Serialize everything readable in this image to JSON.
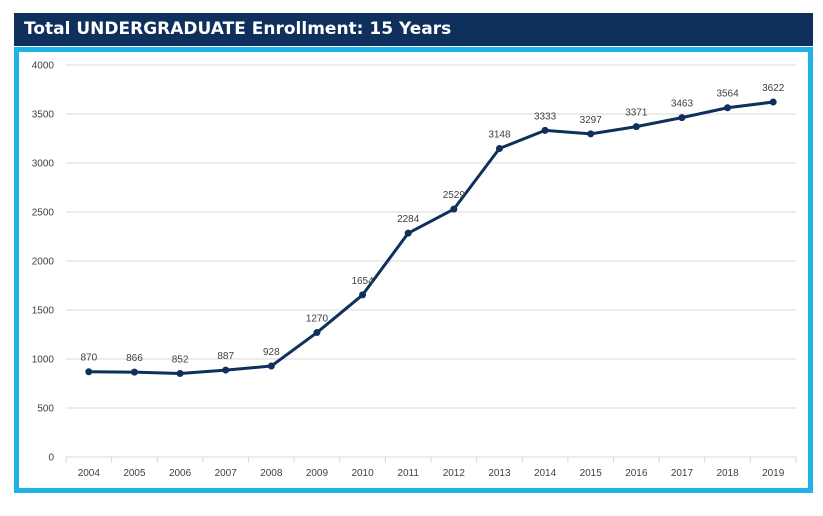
{
  "header": {
    "title": "Total UNDERGRADUATE Enrollment: 15 Years"
  },
  "colors": {
    "header_bg": "#0f2f5c",
    "frame_border": "#1fb3e5",
    "series_line": "#0f2f5c",
    "grid": "#d9d9d9"
  },
  "chart_data": {
    "type": "line",
    "title": "Total UNDERGRADUATE Enrollment: 15 Years",
    "xlabel": "",
    "ylabel": "",
    "categories": [
      "2004",
      "2005",
      "2006",
      "2007",
      "2008",
      "2009",
      "2010",
      "2011",
      "2012",
      "2013",
      "2014",
      "2015",
      "2016",
      "2017",
      "2018",
      "2019"
    ],
    "series": [
      {
        "values": [
          870,
          866,
          852,
          887,
          928,
          1270,
          1654,
          2284,
          2529,
          3148,
          3333,
          3297,
          3371,
          3463,
          3564,
          3622
        ]
      }
    ],
    "ylim": [
      0,
      4000
    ],
    "yticks": [
      0,
      500,
      1000,
      1500,
      2000,
      2500,
      3000,
      3500,
      4000
    ],
    "grid": true,
    "legend": "none",
    "data_labels": true
  }
}
